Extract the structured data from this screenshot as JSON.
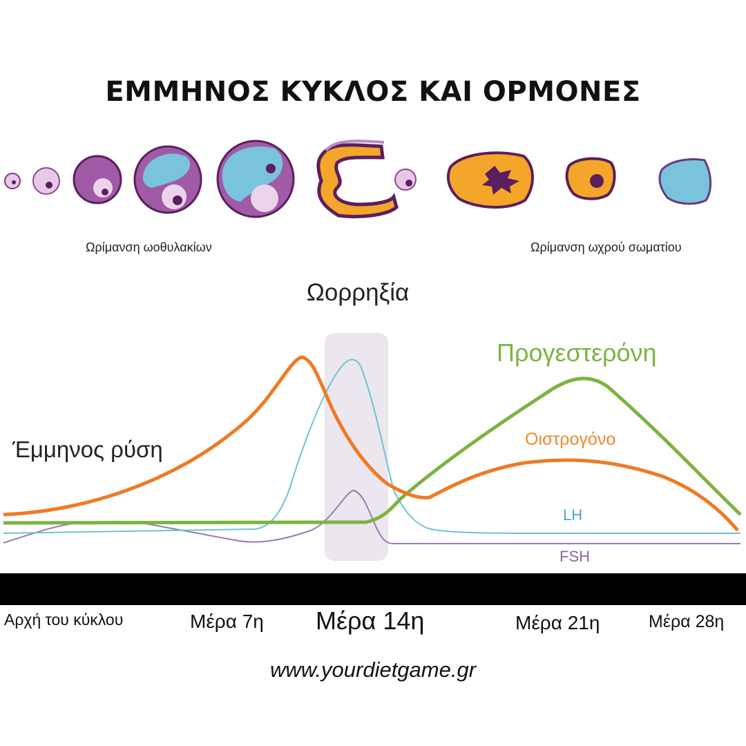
{
  "title": "ΕΜΜΗΝΟΣ ΚΥΚΛΟΣ ΚΑΙ ΟΡΜΟΝΕΣ",
  "labels": {
    "follicle_maturation": "Ωρίμανση ωοθυλακίων",
    "corpus_luteum_maturation": "Ωρίμανση ωχρού σωματίου",
    "ovulation": "Ωορρηξία",
    "menses": "Έμμηνος ρύση"
  },
  "hormones": {
    "progesterone": "Προγεστερόνη",
    "estrogen": "Οιστρογόνο",
    "lh": "LH",
    "fsh": "FSH"
  },
  "days": {
    "start": "Αρχή του κύκλου",
    "day7": "Μέρα 7η",
    "day14": "Μέρα 14η",
    "day21": "Μέρα 21η",
    "day28": "Μέρα 28η"
  },
  "website": "www.yourdietgame.gr",
  "colors": {
    "progesterone": "#7cb342",
    "estrogen": "#ee7a24",
    "lh": "#6cc3d3",
    "fsh": "#9a7ab0",
    "ovulation_band": "#ece6ee",
    "follicle_purple": "#a05aa6",
    "follicle_dark": "#5a1f5e",
    "follicle_light": "#e9c8e6",
    "follicle_blue": "#79c3dc",
    "corpus_orange": "#f4a62a"
  }
}
